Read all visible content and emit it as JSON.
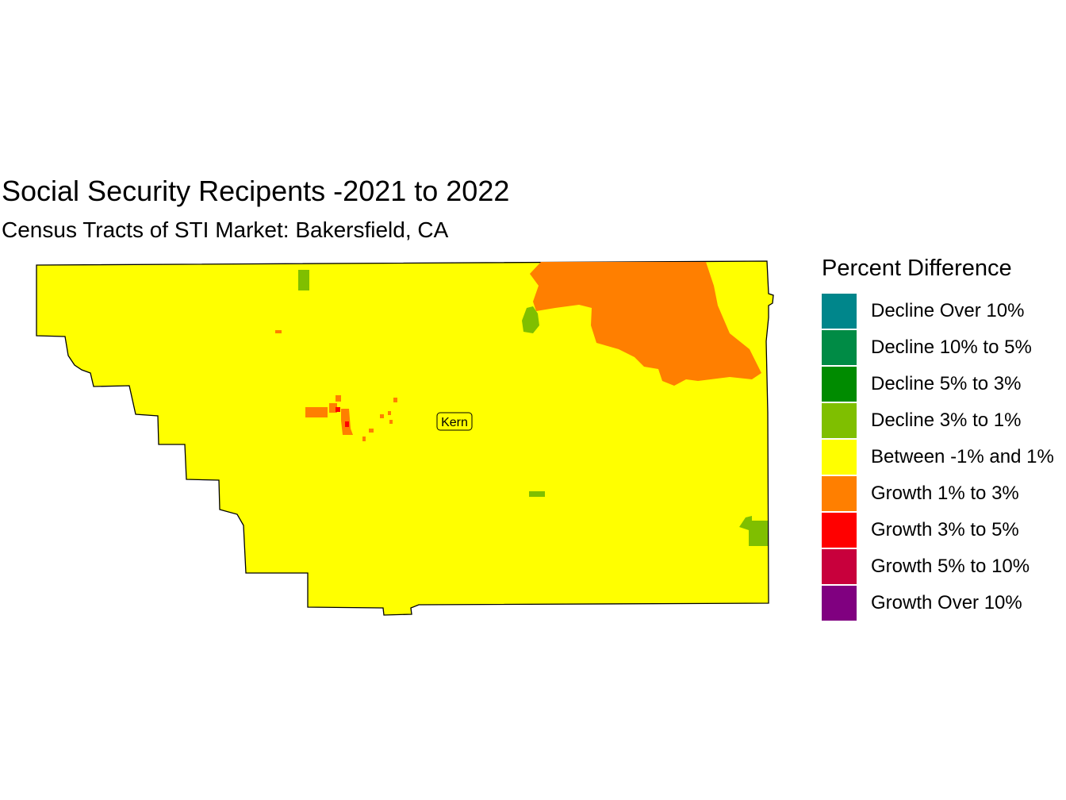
{
  "title": "Social Security Recipents -2021 to 2022",
  "subtitle": "Census Tracts of STI Market: Bakersfield, CA",
  "county_label": "Kern",
  "legend": {
    "title": "Percent Difference",
    "items": [
      {
        "label": "Decline Over 10%",
        "color": "#00868B"
      },
      {
        "label": "Decline 10% to 5%",
        "color": "#008B45"
      },
      {
        "label": "Decline 5% to 3%",
        "color": "#008B00"
      },
      {
        "label": "Decline 3% to 1%",
        "color": "#7FBF00"
      },
      {
        "label": "Between -1% and 1%",
        "color": "#FFFF00"
      },
      {
        "label": "Growth 1% to 3%",
        "color": "#FF7F00"
      },
      {
        "label": "Growth 3% to 5%",
        "color": "#FF0000"
      },
      {
        "label": "Growth 5% to 10%",
        "color": "#C8003C"
      },
      {
        "label": "Growth Over 10%",
        "color": "#800080"
      }
    ]
  }
}
